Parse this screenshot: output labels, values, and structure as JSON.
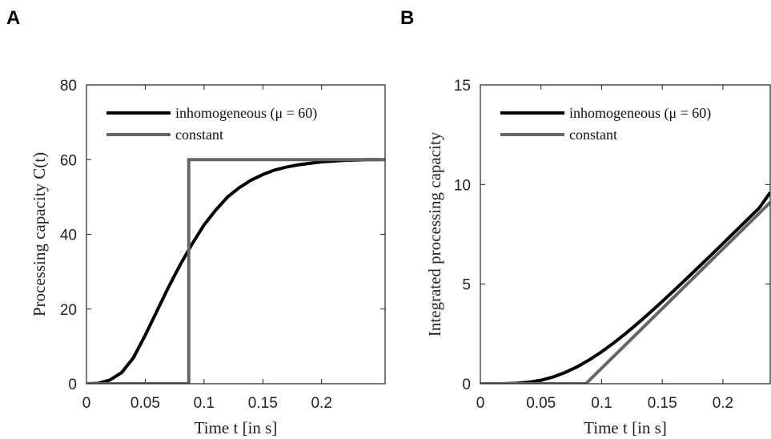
{
  "chart_data": [
    {
      "type": "line",
      "panel_label": "A",
      "xlabel": "Time t [in s]",
      "ylabel": "Processing capacity C(t)",
      "xlim": [
        0,
        0.254
      ],
      "ylim": [
        0,
        80
      ],
      "xticks": [
        0,
        0.05,
        0.1,
        0.15,
        0.2
      ],
      "yticks": [
        0,
        20,
        40,
        60,
        80
      ],
      "legend": "upper left",
      "series": [
        {
          "name": "inhomogeneous (μ = 60)",
          "color": "#000000",
          "x": [
            0,
            0.01,
            0.02,
            0.03,
            0.04,
            0.05,
            0.06,
            0.07,
            0.08,
            0.09,
            0.1,
            0.11,
            0.12,
            0.13,
            0.14,
            0.15,
            0.16,
            0.17,
            0.18,
            0.19,
            0.2,
            0.21,
            0.22,
            0.23,
            0.24,
            0.25
          ],
          "values": [
            0,
            0.1,
            1,
            3,
            7,
            13,
            19.5,
            26,
            32,
            37.5,
            42.5,
            46.5,
            50,
            52.5,
            54.5,
            56,
            57.2,
            58,
            58.6,
            59,
            59.4,
            59.6,
            59.8,
            59.9,
            60,
            60
          ]
        },
        {
          "name": "constant",
          "color": "#666666",
          "x": [
            0,
            0.087,
            0.087,
            0.254
          ],
          "values": [
            0,
            0,
            60,
            60
          ]
        }
      ]
    },
    {
      "type": "line",
      "panel_label": "B",
      "xlabel": "Time t [in s]",
      "ylabel": "Integrated processing capacity",
      "xlim": [
        0,
        0.239
      ],
      "ylim": [
        0,
        15
      ],
      "xticks": [
        0,
        0.05,
        0.1,
        0.15,
        0.2
      ],
      "yticks": [
        0,
        5,
        10,
        15
      ],
      "legend": "upper left",
      "series": [
        {
          "name": "inhomogeneous (μ = 60)",
          "color": "#000000",
          "x": [
            0,
            0.01,
            0.02,
            0.03,
            0.04,
            0.05,
            0.06,
            0.07,
            0.08,
            0.09,
            0.1,
            0.11,
            0.12,
            0.13,
            0.14,
            0.15,
            0.16,
            0.17,
            0.18,
            0.19,
            0.2,
            0.21,
            0.22,
            0.23,
            0.239
          ],
          "values": [
            0,
            0.0005,
            0.006,
            0.026,
            0.076,
            0.176,
            0.339,
            0.566,
            0.856,
            1.204,
            1.604,
            2.049,
            2.531,
            3.044,
            3.579,
            4.131,
            4.697,
            5.273,
            5.856,
            6.444,
            7.036,
            7.631,
            8.228,
            8.827,
            9.6
          ]
        },
        {
          "name": "constant",
          "color": "#666666",
          "x": [
            0,
            0.087,
            0.239
          ],
          "values": [
            0,
            0,
            9.1
          ]
        }
      ]
    }
  ]
}
